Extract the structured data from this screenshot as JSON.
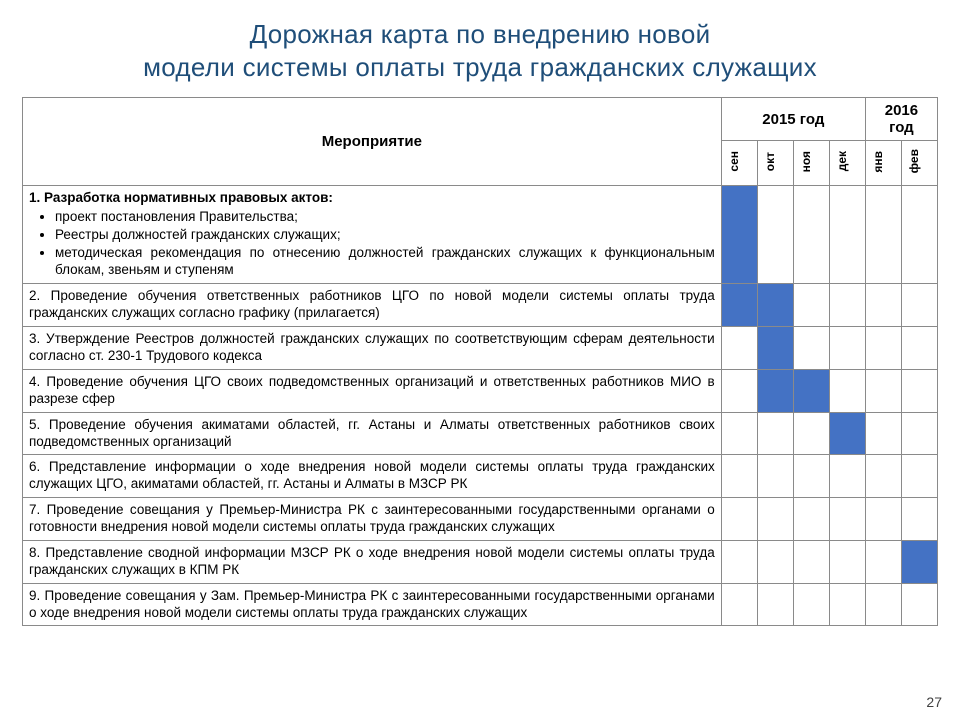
{
  "title_line1": "Дорожная карта по внедрению новой",
  "title_line2": "модели системы оплаты труда гражданских служащих",
  "headers": {
    "year2015": "2015 год",
    "year2016": "2016 год",
    "activity": "Мероприятие"
  },
  "months": [
    "сен",
    "окт",
    "ноя",
    "дек",
    "янв",
    "фев"
  ],
  "fill_color": "#4472c4",
  "border_color": "#8a8a8a",
  "title_color": "#1f4e79",
  "rows": [
    {
      "title_bold": "1. Разработка нормативных правовых актов:",
      "bullets": [
        "проект постановления Правительства;",
        "Реестры должностей гражданских служащих;",
        "методическая рекомендация по отнесению должностей гражданских служащих к функциональным блокам, звеньям и ступеням"
      ],
      "months": [
        true,
        false,
        false,
        false,
        false,
        false
      ]
    },
    {
      "text": "2. Проведение обучения ответственных работников ЦГО по новой модели системы оплаты труда гражданских служащих согласно графику (прилагается)",
      "months": [
        true,
        true,
        false,
        false,
        false,
        false
      ]
    },
    {
      "text": "3. Утверждение Реестров должностей гражданских служащих по соответствующим сферам деятельности согласно ст. 230-1 Трудового кодекса",
      "months": [
        false,
        true,
        false,
        false,
        false,
        false
      ]
    },
    {
      "text": "4. Проведение обучения ЦГО своих подведомственных организаций  и ответственных работников МИО в разрезе сфер",
      "months": [
        false,
        true,
        true,
        false,
        false,
        false
      ]
    },
    {
      "text": "5. Проведение обучения акиматами областей, гг. Астаны и Алматы ответственных работников своих подведомственных организаций",
      "months": [
        false,
        false,
        false,
        true,
        false,
        false
      ]
    },
    {
      "text": "6. Представление информации о ходе внедрения новой модели системы оплаты труда гражданских служащих ЦГО, акиматами областей, гг. Астаны и Алматы в МЗСР РК",
      "months": [
        false,
        false,
        false,
        false,
        false,
        false
      ]
    },
    {
      "text": "7. Проведение совещания у Премьер-Министра РК  с заинтересованными государственными органами о готовности внедрения новой модели системы оплаты труда гражданских служащих",
      "months": [
        false,
        false,
        false,
        false,
        false,
        false
      ]
    },
    {
      "text": "8. Представление сводной информации МЗСР РК о ходе внедрения новой модели системы оплаты труда гражданских служащих в КПМ РК",
      "months": [
        false,
        false,
        false,
        false,
        false,
        true
      ]
    },
    {
      "text": "9. Проведение совещания у Зам. Премьер-Министра РК  с заинтересованными государственными органами о ходе внедрения новой модели системы оплаты труда гражданских служащих",
      "months": [
        false,
        false,
        false,
        false,
        false,
        false
      ]
    }
  ],
  "page_number": "27"
}
